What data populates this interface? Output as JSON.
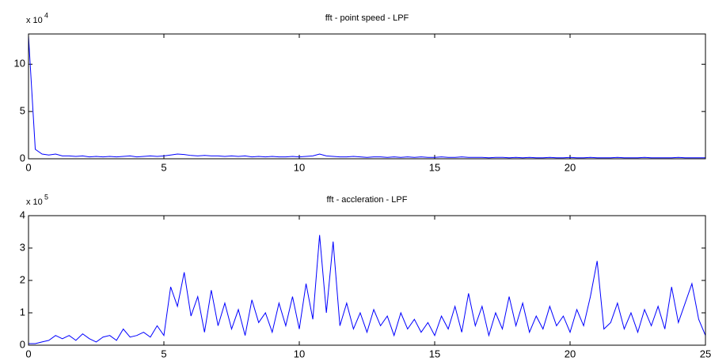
{
  "chart_data": [
    {
      "type": "line",
      "title": "fft - point speed - LPF",
      "y_multiplier": "x 10",
      "y_exponent": "4",
      "color": "#0000ff",
      "x": [
        0,
        0.25,
        0.5,
        0.75,
        1,
        1.25,
        1.5,
        1.75,
        2,
        2.25,
        2.5,
        2.75,
        3,
        3.25,
        3.5,
        3.75,
        4,
        4.25,
        4.5,
        4.75,
        5,
        5.25,
        5.5,
        5.75,
        6,
        6.25,
        6.5,
        6.75,
        7,
        7.25,
        7.5,
        7.75,
        8,
        8.25,
        8.5,
        8.75,
        9,
        9.25,
        9.5,
        9.75,
        10,
        10.25,
        10.5,
        10.75,
        11,
        11.25,
        11.5,
        11.75,
        12,
        12.25,
        12.5,
        12.75,
        13,
        13.25,
        13.5,
        13.75,
        14,
        14.25,
        14.5,
        14.75,
        15,
        15.25,
        15.5,
        15.75,
        16,
        16.25,
        16.5,
        16.75,
        17,
        17.25,
        17.5,
        17.75,
        18,
        18.25,
        18.5,
        18.75,
        19,
        19.25,
        19.5,
        19.75,
        20,
        20.25,
        20.5,
        20.75,
        21,
        21.25,
        21.5,
        21.75,
        22,
        22.25,
        22.5,
        22.75,
        23,
        23.25,
        23.5,
        23.75,
        24,
        24.25,
        24.5,
        24.75,
        25
      ],
      "values": [
        13,
        1.0,
        0.5,
        0.4,
        0.5,
        0.3,
        0.3,
        0.25,
        0.3,
        0.2,
        0.25,
        0.2,
        0.25,
        0.2,
        0.25,
        0.3,
        0.2,
        0.25,
        0.3,
        0.25,
        0.3,
        0.4,
        0.5,
        0.45,
        0.35,
        0.3,
        0.35,
        0.3,
        0.3,
        0.25,
        0.3,
        0.25,
        0.3,
        0.2,
        0.25,
        0.2,
        0.25,
        0.2,
        0.2,
        0.25,
        0.2,
        0.25,
        0.3,
        0.5,
        0.3,
        0.25,
        0.2,
        0.2,
        0.25,
        0.2,
        0.15,
        0.2,
        0.2,
        0.15,
        0.2,
        0.15,
        0.2,
        0.15,
        0.2,
        0.15,
        0.15,
        0.2,
        0.15,
        0.15,
        0.2,
        0.15,
        0.15,
        0.15,
        0.1,
        0.15,
        0.15,
        0.1,
        0.15,
        0.1,
        0.15,
        0.1,
        0.1,
        0.15,
        0.1,
        0.1,
        0.15,
        0.1,
        0.1,
        0.15,
        0.1,
        0.1,
        0.1,
        0.15,
        0.1,
        0.1,
        0.1,
        0.15,
        0.1,
        0.1,
        0.1,
        0.1,
        0.15,
        0.1,
        0.1,
        0.1,
        0.1
      ],
      "xlim": [
        0,
        25
      ],
      "ylim": [
        0,
        13.2
      ],
      "xticks": [
        0,
        5,
        10,
        15,
        20
      ],
      "yticks": [
        0,
        5,
        10
      ]
    },
    {
      "type": "line",
      "title": "fft - accleration - LPF",
      "y_multiplier": "x 10",
      "y_exponent": "5",
      "color": "#0000ff",
      "x": [
        0,
        0.25,
        0.5,
        0.75,
        1,
        1.25,
        1.5,
        1.75,
        2,
        2.25,
        2.5,
        2.75,
        3,
        3.25,
        3.5,
        3.75,
        4,
        4.25,
        4.5,
        4.75,
        5,
        5.25,
        5.5,
        5.75,
        6,
        6.25,
        6.5,
        6.75,
        7,
        7.25,
        7.5,
        7.75,
        8,
        8.25,
        8.5,
        8.75,
        9,
        9.25,
        9.5,
        9.75,
        10,
        10.25,
        10.5,
        10.75,
        11,
        11.25,
        11.5,
        11.75,
        12,
        12.25,
        12.5,
        12.75,
        13,
        13.25,
        13.5,
        13.75,
        14,
        14.25,
        14.5,
        14.75,
        15,
        15.25,
        15.5,
        15.75,
        16,
        16.25,
        16.5,
        16.75,
        17,
        17.25,
        17.5,
        17.75,
        18,
        18.25,
        18.5,
        18.75,
        19,
        19.25,
        19.5,
        19.75,
        20,
        20.25,
        20.5,
        20.75,
        21,
        21.25,
        21.5,
        21.75,
        22,
        22.25,
        22.5,
        22.75,
        23,
        23.25,
        23.5,
        23.75,
        24,
        24.25,
        24.5,
        24.75,
        25
      ],
      "values": [
        0.05,
        0.05,
        0.1,
        0.15,
        0.3,
        0.2,
        0.3,
        0.15,
        0.35,
        0.2,
        0.1,
        0.25,
        0.3,
        0.15,
        0.5,
        0.25,
        0.3,
        0.4,
        0.25,
        0.6,
        0.3,
        1.8,
        1.2,
        2.25,
        0.9,
        1.5,
        0.4,
        1.7,
        0.6,
        1.3,
        0.5,
        1.1,
        0.3,
        1.4,
        0.7,
        1.0,
        0.4,
        1.3,
        0.6,
        1.5,
        0.5,
        1.9,
        0.8,
        3.4,
        1.0,
        3.2,
        0.6,
        1.3,
        0.5,
        1.0,
        0.4,
        1.1,
        0.6,
        0.9,
        0.3,
        1.0,
        0.5,
        0.8,
        0.4,
        0.7,
        0.3,
        0.9,
        0.5,
        1.2,
        0.4,
        1.6,
        0.6,
        1.2,
        0.3,
        1.0,
        0.5,
        1.5,
        0.6,
        1.3,
        0.4,
        0.9,
        0.5,
        1.2,
        0.6,
        0.9,
        0.4,
        1.1,
        0.6,
        1.5,
        2.6,
        0.5,
        0.7,
        1.3,
        0.5,
        1.0,
        0.4,
        1.1,
        0.6,
        1.2,
        0.5,
        1.8,
        0.7,
        1.3,
        1.9,
        0.8,
        0.3
      ],
      "xlim": [
        0,
        25
      ],
      "ylim": [
        0,
        4
      ],
      "xticks": [
        0,
        5,
        10,
        15,
        20,
        25
      ],
      "yticks": [
        0,
        1,
        2,
        3,
        4
      ]
    }
  ]
}
